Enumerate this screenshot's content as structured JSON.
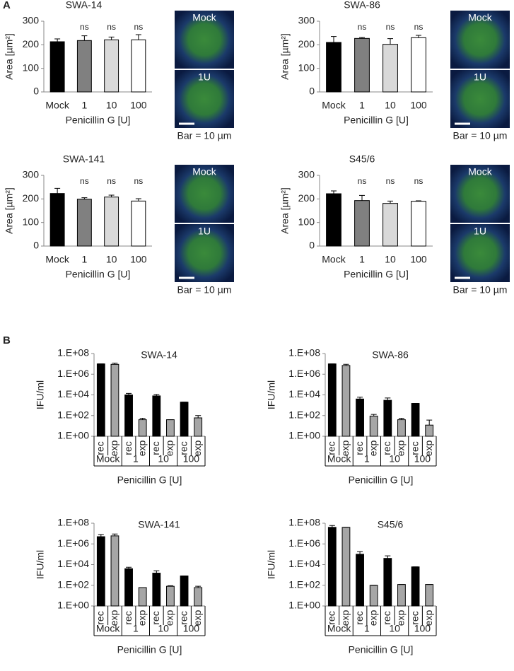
{
  "panel_labels": [
    "A",
    "B"
  ],
  "micrographs": [
    {
      "top_label": "Mock",
      "bottom_label": "1U",
      "caption": "Bar = 10 µm"
    },
    {
      "top_label": "Mock",
      "bottom_label": "1U",
      "caption": "Bar = 10 µm"
    },
    {
      "top_label": "Mock",
      "bottom_label": "1U",
      "caption": "Bar = 10 µm"
    },
    {
      "top_label": "Mock",
      "bottom_label": "1U",
      "caption": "Bar = 10 µm"
    }
  ],
  "chart_data": [
    {
      "type": "bar",
      "title": "SWA-14",
      "ylabel": "Area [µm²]",
      "xlabel": "Penicillin G [U]",
      "categories": [
        "Mock",
        "1",
        "10",
        "100"
      ],
      "values": [
        213,
        218,
        221,
        221
      ],
      "errors": [
        12,
        20,
        12,
        22
      ],
      "annotations": [
        null,
        "ns",
        "ns",
        "ns"
      ],
      "colors": [
        "#000000",
        "#808080",
        "#d9d9d9",
        "#ffffff"
      ],
      "ylim": [
        0,
        300
      ],
      "yticks": [
        0,
        100,
        200,
        300
      ]
    },
    {
      "type": "bar",
      "title": "SWA-86",
      "ylabel": "Area [µm²]",
      "xlabel": "Penicillin G [U]",
      "categories": [
        "Mock",
        "1",
        "10",
        "100"
      ],
      "values": [
        210,
        227,
        202,
        230
      ],
      "errors": [
        25,
        4,
        24,
        10
      ],
      "annotations": [
        null,
        "ns",
        "ns",
        "ns"
      ],
      "colors": [
        "#000000",
        "#808080",
        "#d9d9d9",
        "#ffffff"
      ],
      "ylim": [
        0,
        300
      ],
      "yticks": [
        0,
        100,
        200,
        300
      ]
    },
    {
      "type": "bar",
      "title": "SWA-141",
      "ylabel": "Area [µm²]",
      "xlabel": "Penicillin G [U]",
      "categories": [
        "Mock",
        "1",
        "10",
        "100"
      ],
      "values": [
        223,
        199,
        208,
        191
      ],
      "errors": [
        22,
        6,
        8,
        10
      ],
      "annotations": [
        null,
        "ns",
        "ns",
        "ns"
      ],
      "colors": [
        "#000000",
        "#808080",
        "#d9d9d9",
        "#ffffff"
      ],
      "ylim": [
        0,
        300
      ],
      "yticks": [
        0,
        100,
        200,
        300
      ]
    },
    {
      "type": "bar",
      "title": "S45/6",
      "ylabel": "Area [µm²]",
      "xlabel": "Penicillin G [U]",
      "categories": [
        "Mock",
        "1",
        "10",
        "100"
      ],
      "values": [
        222,
        193,
        181,
        190
      ],
      "errors": [
        12,
        22,
        10,
        2
      ],
      "annotations": [
        null,
        "ns",
        "ns",
        "ns"
      ],
      "colors": [
        "#000000",
        "#808080",
        "#d9d9d9",
        "#ffffff"
      ],
      "ylim": [
        0,
        300
      ],
      "yticks": [
        0,
        100,
        200,
        300
      ]
    },
    {
      "type": "bar",
      "log_scale": true,
      "title": "SWA-14",
      "ylabel": "IFU/ml",
      "xlabel": "Penicillin G [U]",
      "categories": [
        "rec",
        "exp",
        "rec",
        "exp",
        "rec",
        "exp",
        "rec",
        "exp"
      ],
      "groups": [
        "Mock",
        "1",
        "10",
        "100"
      ],
      "values": [
        10000000,
        9000000,
        10000,
        40,
        8000,
        40,
        2000,
        60
      ],
      "errors": [
        0,
        3000000,
        4000,
        15,
        3000,
        0,
        0,
        40
      ],
      "colors": [
        "#000000",
        "#a6a6a6",
        "#000000",
        "#a6a6a6",
        "#000000",
        "#a6a6a6",
        "#000000",
        "#a6a6a6"
      ],
      "ylim": [
        1,
        100000000
      ],
      "yticks": [
        {
          "value": 1,
          "label": "1.E+00"
        },
        {
          "value": 100,
          "label": "1.E+02"
        },
        {
          "value": 10000,
          "label": "1.E+04"
        },
        {
          "value": 1000000,
          "label": "1.E+06"
        },
        {
          "value": 100000000,
          "label": "1.E+08"
        }
      ]
    },
    {
      "type": "bar",
      "log_scale": true,
      "title": "SWA-86",
      "ylabel": "IFU/ml",
      "xlabel": "Penicillin G [U]",
      "categories": [
        "rec",
        "exp",
        "rec",
        "exp",
        "rec",
        "exp",
        "rec",
        "exp"
      ],
      "groups": [
        "Mock",
        "1",
        "10",
        "100"
      ],
      "values": [
        10000000,
        7000000,
        4000,
        90,
        3000,
        40,
        1500,
        12
      ],
      "errors": [
        0,
        2000000,
        2000,
        40,
        2000,
        15,
        0,
        25
      ],
      "colors": [
        "#000000",
        "#a6a6a6",
        "#000000",
        "#a6a6a6",
        "#000000",
        "#a6a6a6",
        "#000000",
        "#a6a6a6"
      ],
      "ylim": [
        1,
        100000000
      ],
      "yticks": [
        {
          "value": 1,
          "label": "1.E+00"
        },
        {
          "value": 100,
          "label": "1.E+02"
        },
        {
          "value": 10000,
          "label": "1.E+04"
        },
        {
          "value": 1000000,
          "label": "1.E+06"
        },
        {
          "value": 100000000,
          "label": "1.E+08"
        }
      ]
    },
    {
      "type": "bar",
      "log_scale": true,
      "title": "SWA-141",
      "ylabel": "IFU/ml",
      "xlabel": "Penicillin G [U]",
      "categories": [
        "rec",
        "exp",
        "rec",
        "exp",
        "rec",
        "exp",
        "rec",
        "exp"
      ],
      "groups": [
        "Mock",
        "1",
        "10",
        "100"
      ],
      "values": [
        5000000,
        6000000,
        4000,
        60,
        1500,
        80,
        800,
        60
      ],
      "errors": [
        3000000,
        3000000,
        1500,
        0,
        1000,
        10,
        0,
        20
      ],
      "colors": [
        "#000000",
        "#a6a6a6",
        "#000000",
        "#a6a6a6",
        "#000000",
        "#a6a6a6",
        "#000000",
        "#a6a6a6"
      ],
      "ylim": [
        1,
        100000000
      ],
      "yticks": [
        {
          "value": 1,
          "label": "1.E+00"
        },
        {
          "value": 100,
          "label": "1.E+02"
        },
        {
          "value": 10000,
          "label": "1.E+04"
        },
        {
          "value": 1000000,
          "label": "1.E+06"
        },
        {
          "value": 100000000,
          "label": "1.E+08"
        }
      ]
    },
    {
      "type": "bar",
      "log_scale": true,
      "title": "S45/6",
      "ylabel": "IFU/ml",
      "xlabel": "Penicillin G [U]",
      "categories": [
        "rec",
        "exp",
        "rec",
        "exp",
        "rec",
        "exp",
        "rec",
        "exp"
      ],
      "groups": [
        "Mock",
        "1",
        "10",
        "100"
      ],
      "values": [
        40000000,
        40000000,
        100000,
        100,
        40000,
        120,
        6000,
        120
      ],
      "errors": [
        20000000,
        0,
        80000,
        0,
        30000,
        0,
        0,
        0
      ],
      "colors": [
        "#000000",
        "#a6a6a6",
        "#000000",
        "#a6a6a6",
        "#000000",
        "#a6a6a6",
        "#000000",
        "#a6a6a6"
      ],
      "ylim": [
        1,
        100000000
      ],
      "yticks": [
        {
          "value": 1,
          "label": "1.E+00"
        },
        {
          "value": 100,
          "label": "1.E+02"
        },
        {
          "value": 10000,
          "label": "1.E+04"
        },
        {
          "value": 1000000,
          "label": "1.E+06"
        },
        {
          "value": 100000000,
          "label": "1.E+08"
        }
      ]
    }
  ]
}
